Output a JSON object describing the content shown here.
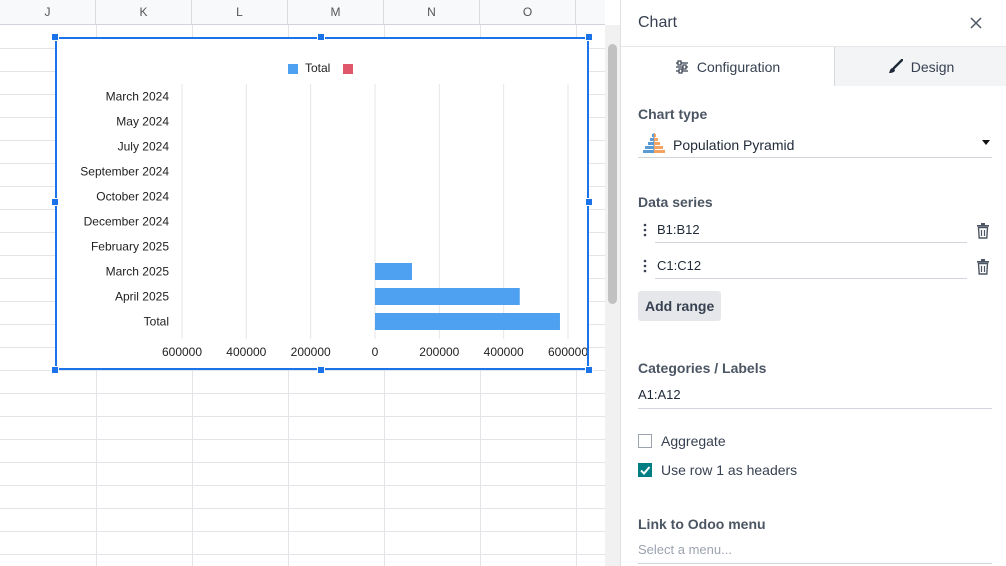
{
  "sheet": {
    "columns": [
      "J",
      "K",
      "L",
      "M",
      "N",
      "O"
    ]
  },
  "chart_data": {
    "type": "bar",
    "subtype": "population-pyramid",
    "categories": [
      "March 2024",
      "May 2024",
      "July 2024",
      "September 2024",
      "October 2024",
      "December 2024",
      "February 2025",
      "March 2025",
      "April 2025",
      "Total"
    ],
    "series": [
      {
        "name": "Total",
        "color": "#4ea1f0",
        "values": [
          0,
          0,
          0,
          0,
          0,
          0,
          0,
          115000,
          450000,
          575000
        ]
      },
      {
        "name": "",
        "color": "#e0566b",
        "values": [
          0,
          0,
          0,
          0,
          0,
          0,
          0,
          0,
          0,
          0
        ]
      }
    ],
    "x_ticks": [
      600000,
      400000,
      200000,
      0,
      200000,
      400000,
      600000
    ],
    "xlim": [
      -600000,
      600000
    ],
    "grid": true,
    "legend": "top"
  },
  "panel": {
    "title": "Chart",
    "tabs": {
      "configuration": "Configuration",
      "design": "Design"
    },
    "chart_type": {
      "label": "Chart type",
      "value": "Population Pyramid"
    },
    "data_series": {
      "label": "Data series",
      "ranges": [
        "B1:B12",
        "C1:C12"
      ],
      "add_range": "Add range"
    },
    "categories": {
      "label": "Categories / Labels",
      "value": "A1:A12"
    },
    "aggregate": {
      "label": "Aggregate",
      "checked": false
    },
    "use_headers": {
      "label": "Use row 1 as headers",
      "checked": true
    },
    "odoo_link": {
      "label": "Link to Odoo menu",
      "placeholder": "Select a menu..."
    }
  },
  "colors": {
    "selection": "#1a73e8",
    "accent": "#017e84"
  }
}
